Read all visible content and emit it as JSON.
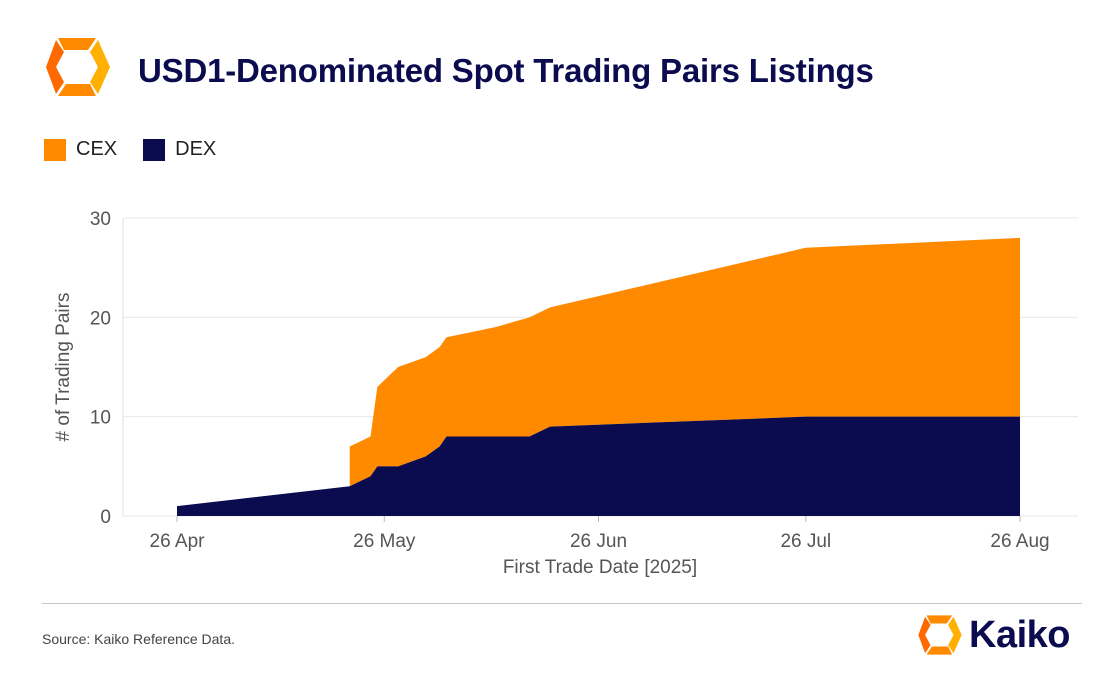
{
  "title": "USD1-Denominated Spot Trading Pairs Listings",
  "legend": [
    {
      "label": "CEX",
      "color": "#ff8a00"
    },
    {
      "label": "DEX",
      "color": "#0b0b4f"
    }
  ],
  "source": "Source: Kaiko Reference Data.",
  "brand": "Kaiko",
  "colors": {
    "cex": "#ff8a00",
    "dex": "#0b0b4f",
    "text": "#0b0b4f"
  },
  "chart_data": {
    "type": "area",
    "stacked": true,
    "xlabel": "First Trade Date [2025]",
    "ylabel": "# of Trading Pairs",
    "ylim": [
      0,
      30
    ],
    "yticks": [
      0,
      10,
      20,
      30
    ],
    "x_ticks": [
      {
        "date": "2025-04-26",
        "label": "26 Apr"
      },
      {
        "date": "2025-05-26",
        "label": "26 May"
      },
      {
        "date": "2025-06-26",
        "label": "26 Jun"
      },
      {
        "date": "2025-07-26",
        "label": "26 Jul"
      },
      {
        "date": "2025-08-26",
        "label": "26 Aug"
      }
    ],
    "grid": true,
    "legend_position": "top-left",
    "series": [
      {
        "name": "DEX",
        "color": "#0b0b4f",
        "points": [
          {
            "x": "2025-04-26",
            "y": 1
          },
          {
            "x": "2025-05-21",
            "y": 3
          },
          {
            "x": "2025-05-24",
            "y": 4
          },
          {
            "x": "2025-05-25",
            "y": 5
          },
          {
            "x": "2025-05-28",
            "y": 5
          },
          {
            "x": "2025-06-01",
            "y": 6
          },
          {
            "x": "2025-06-03",
            "y": 7
          },
          {
            "x": "2025-06-04",
            "y": 8
          },
          {
            "x": "2025-06-16",
            "y": 8
          },
          {
            "x": "2025-06-19",
            "y": 9
          },
          {
            "x": "2025-07-26",
            "y": 10
          },
          {
            "x": "2025-08-26",
            "y": 10
          }
        ]
      },
      {
        "name": "CEX",
        "color": "#ff8a00",
        "points": [
          {
            "x": "2025-05-21",
            "y": 4
          },
          {
            "x": "2025-05-24",
            "y": 4
          },
          {
            "x": "2025-05-25",
            "y": 8
          },
          {
            "x": "2025-05-26",
            "y": 9
          },
          {
            "x": "2025-05-29",
            "y": 10
          },
          {
            "x": "2025-06-01",
            "y": 10
          },
          {
            "x": "2025-06-03",
            "y": 10
          },
          {
            "x": "2025-06-04",
            "y": 10
          },
          {
            "x": "2025-06-11",
            "y": 11
          },
          {
            "x": "2025-06-16",
            "y": 12
          },
          {
            "x": "2025-06-19",
            "y": 12
          },
          {
            "x": "2025-07-26",
            "y": 17
          },
          {
            "x": "2025-08-26",
            "y": 18
          }
        ]
      }
    ],
    "totals": [
      {
        "x": "2025-05-21",
        "y": 7
      },
      {
        "x": "2025-05-24",
        "y": 8
      },
      {
        "x": "2025-05-25",
        "y": 13
      },
      {
        "x": "2025-05-28",
        "y": 15
      },
      {
        "x": "2025-06-01",
        "y": 16
      },
      {
        "x": "2025-06-03",
        "y": 17
      },
      {
        "x": "2025-06-04",
        "y": 18
      },
      {
        "x": "2025-06-11",
        "y": 19
      },
      {
        "x": "2025-06-16",
        "y": 20
      },
      {
        "x": "2025-06-19",
        "y": 21
      },
      {
        "x": "2025-07-26",
        "y": 27
      },
      {
        "x": "2025-08-26",
        "y": 28
      }
    ]
  }
}
